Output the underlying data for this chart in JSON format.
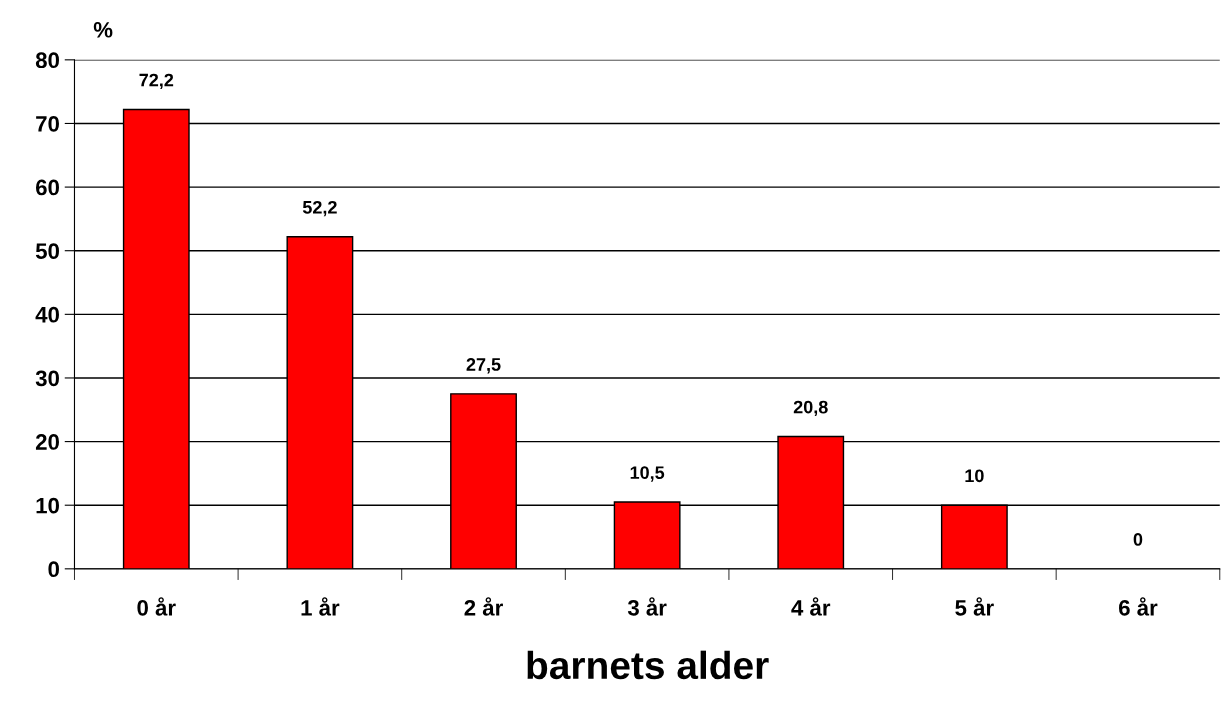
{
  "chart_data": {
    "type": "bar",
    "xlabel": "barnets alder",
    "ylabel": "%",
    "categories": [
      "0 år",
      "1 år",
      "2 år",
      "3 år",
      "4 år",
      "5 år",
      "6 år"
    ],
    "values": [
      72.2,
      52.2,
      27.5,
      10.5,
      20.8,
      10,
      0
    ],
    "value_labels": [
      "72,2",
      "52,2",
      "27,5",
      "10,5",
      "20,8",
      "10",
      "0"
    ],
    "color": "#ff0000",
    "ylim": [
      0,
      80
    ],
    "yticks": [
      0,
      10,
      20,
      30,
      40,
      50,
      60,
      70,
      80
    ],
    "grid": "y"
  }
}
